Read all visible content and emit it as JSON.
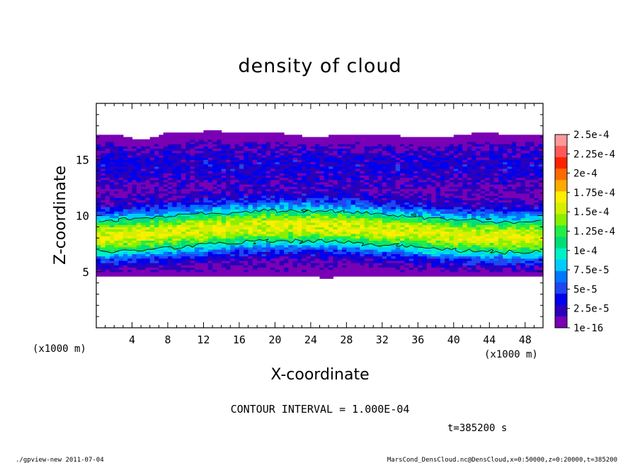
{
  "chart_data": {
    "type": "heatmap",
    "title": "density of cloud",
    "xlabel": "X-coordinate",
    "ylabel": "Z-coordinate",
    "x_unit_left": "(x1000 m)",
    "x_unit_right": "(x1000 m)",
    "xlim": [
      0,
      50
    ],
    "ylim": [
      0,
      20
    ],
    "x_ticks": [
      4,
      8,
      12,
      16,
      20,
      24,
      28,
      32,
      36,
      40,
      44,
      48
    ],
    "y_ticks": [
      5,
      10,
      15
    ],
    "colorbar": {
      "labels": [
        "2.5e-4",
        "2.25e-4",
        "2e-4",
        "1.75e-4",
        "1.5e-4",
        "1.25e-4",
        "1e-4",
        "7.5e-5",
        "5e-5",
        "2.5e-5",
        "1e-16"
      ],
      "colors": [
        "#ff9999",
        "#ff5a5a",
        "#ff2200",
        "#ff6a00",
        "#ffaa00",
        "#ffee00",
        "#d2f000",
        "#88f000",
        "#22ee44",
        "#00dd77",
        "#00f0c8",
        "#00ccff",
        "#0077ff",
        "#1f46f0",
        "#0000ee",
        "#2a00bb",
        "#7a00b4"
      ]
    },
    "cloud_layer": {
      "bottom_z": [
        4.6,
        4.6,
        4.6,
        4.6,
        4.6,
        4.6,
        4.6,
        4.5,
        4.6,
        4.6,
        4.6,
        4.6,
        4.6,
        4.4,
        4.7,
        4.7,
        4.6,
        4.6,
        4.6,
        4.6,
        4.6,
        4.6,
        4.6,
        4.5,
        4.6,
        4.6
      ],
      "top_z": [
        17.2,
        17.3,
        16.9,
        16.9,
        17.4,
        17.4,
        17.5,
        17.5,
        17.4,
        17.3,
        17.4,
        17.2,
        17.0,
        17.1,
        17.2,
        17.3,
        17.1,
        17.1,
        17.0,
        17.0,
        17.1,
        17.3,
        17.4,
        17.2,
        17.3,
        17.2
      ],
      "peak_band_z": [
        7.0,
        10.5
      ],
      "peak_value": 0.00016
    },
    "contour_interval": "CONTOUR INTERVAL = 1.000E-04",
    "time_label": "t=385200 s"
  },
  "footer": {
    "left": "./gpview-new  2011-07-04",
    "right": "MarsCond_DensCloud.nc@DensCloud,x=0:50000,z=0:20000,t=385200"
  }
}
